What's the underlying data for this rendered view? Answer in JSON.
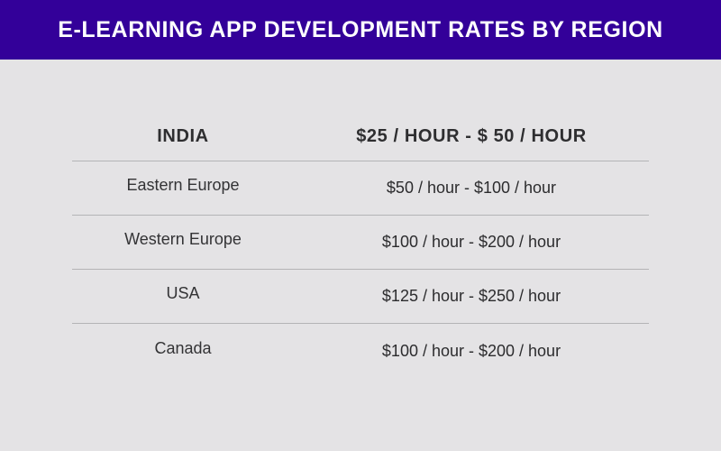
{
  "banner": {
    "title": "E-LEARNING APP DEVELOPMENT RATES BY REGION",
    "background_color": "#330099"
  },
  "table": {
    "header": {
      "region": "INDIA",
      "rate": "$25 / HOUR - $ 50 / HOUR"
    },
    "rows": [
      {
        "region": "Eastern Europe",
        "rate": "$50 / hour - $100 / hour"
      },
      {
        "region": "Western Europe",
        "rate": "$100 / hour - $200 / hour"
      },
      {
        "region": "USA",
        "rate": "$125 / hour - $250 / hour"
      },
      {
        "region": "Canada",
        "rate": "$100 / hour - $200 / hour"
      }
    ]
  }
}
